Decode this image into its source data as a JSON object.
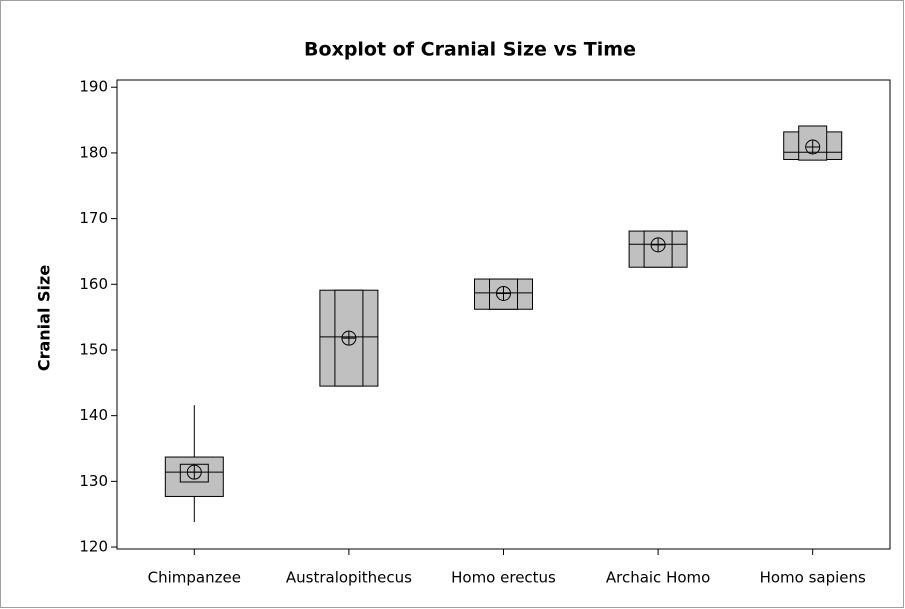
{
  "chart_data": {
    "type": "boxplot",
    "title": "Boxplot of Cranial Size vs Time",
    "ylabel": "Cranial Size",
    "categories": [
      "Chimpanzee",
      "Australopithecus",
      "Homo erectus",
      "Archaic Homo",
      "Homo sapiens"
    ],
    "whisker_low": [
      123.8,
      null,
      null,
      null,
      null
    ],
    "q1": [
      127.7,
      144.5,
      156.2,
      162.6,
      179.0
    ],
    "median": [
      131.4,
      152.0,
      158.7,
      166.1,
      180.1
    ],
    "q3": [
      133.7,
      159.1,
      160.8,
      168.1,
      183.2
    ],
    "whisker_high": [
      141.6,
      null,
      null,
      null,
      null
    ],
    "mean": [
      131.4,
      151.8,
      158.6,
      166.0,
      180.9
    ],
    "ci_low": [
      129.9,
      144.5,
      156.2,
      162.6,
      178.9
    ],
    "ci_high": [
      132.6,
      159.1,
      160.8,
      168.1,
      184.1
    ],
    "color": "#c0c0c0",
    "ylim": [
      119.7,
      191.1
    ],
    "yticks": [
      120,
      130,
      140,
      150,
      160,
      170,
      180,
      190
    ],
    "grid": false
  }
}
